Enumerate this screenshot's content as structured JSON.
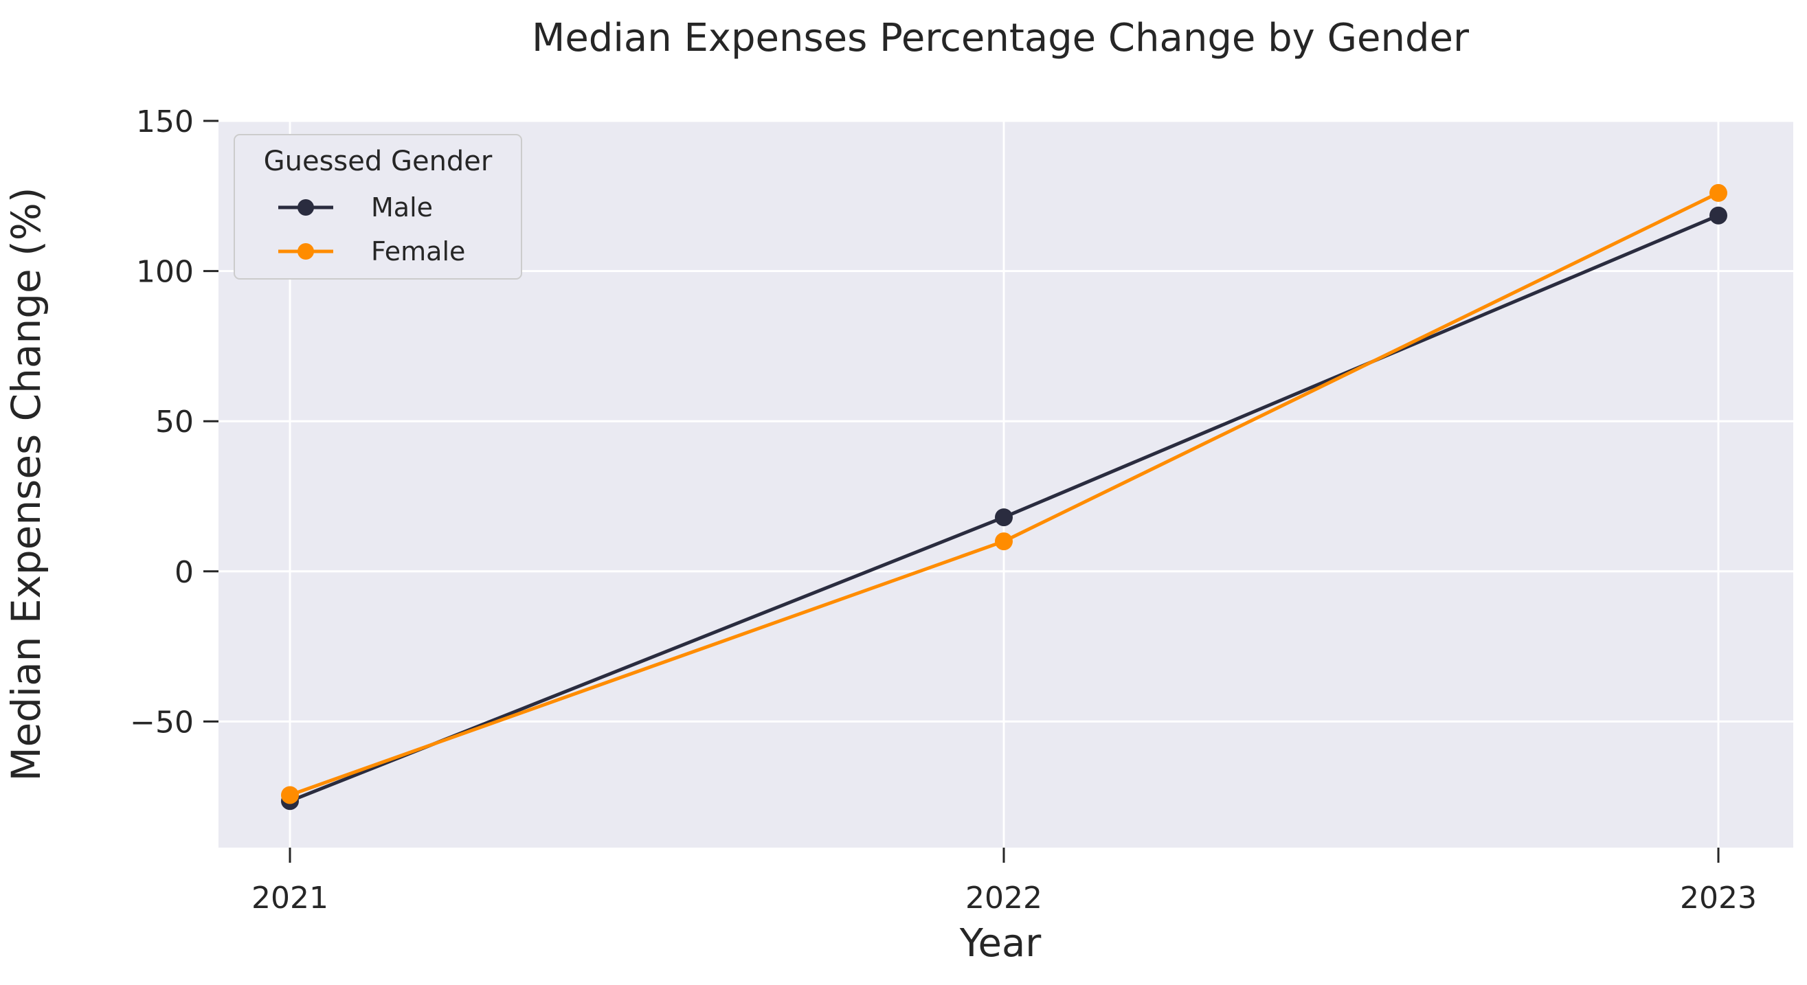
{
  "chart_data": {
    "type": "line",
    "title": "Median Expenses Percentage Change by Gender",
    "xlabel": "Year",
    "ylabel": "Median Expenses Change (%)",
    "x": [
      "2021",
      "2022",
      "2023"
    ],
    "ylim": [
      -92,
      150
    ],
    "yticks": [
      -50,
      0,
      50,
      100,
      150
    ],
    "ytick_labels": [
      "−50",
      "0",
      "50",
      "100",
      "150"
    ],
    "grid": true,
    "legend": {
      "title": "Guessed Gender",
      "placement": "top-left"
    },
    "series": [
      {
        "name": "Male",
        "values": [
          -76.5,
          18,
          118.5
        ],
        "color": "#2a2c3f",
        "marker": "circle"
      },
      {
        "name": "Female",
        "values": [
          -74.5,
          10,
          126
        ],
        "color": "#ff8c00",
        "marker": "circle"
      }
    ],
    "colors": {
      "plot_background": "#eaeaf2",
      "grid": "#ffffff",
      "text": "#262626",
      "legend_border": "#cccccc"
    }
  }
}
